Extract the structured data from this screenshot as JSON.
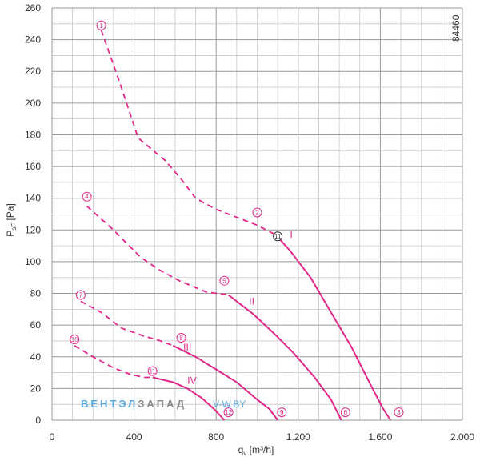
{
  "chart_data": {
    "type": "line",
    "id_number": "84460",
    "watermark": {
      "part1": "ВЕНТЭЛ",
      "part2": "ЗАПАД",
      "part3": "V-W.BY",
      "color1": "#5aa9dc",
      "color2": "#8a8a8a",
      "color3": "#5aa9dc"
    },
    "xlabel": {
      "main": "q",
      "sub": "v",
      "rest": " [m³/h]"
    },
    "ylabel": {
      "main": "P",
      "sub": "sF",
      "rest": " [Pa]"
    },
    "xlim": [
      0,
      2000
    ],
    "ylim": [
      0,
      260
    ],
    "grid": true,
    "x_ticks": [
      {
        "value": 0,
        "label": "0"
      },
      {
        "value": 400,
        "label": "400"
      },
      {
        "value": 800,
        "label": "800"
      },
      {
        "value": 1200,
        "label": "1.200"
      },
      {
        "value": 1600,
        "label": "1.600"
      },
      {
        "value": 2000,
        "label": "2.000"
      }
    ],
    "y_ticks": [
      {
        "value": 0,
        "label": "0"
      },
      {
        "value": 20,
        "label": "20"
      },
      {
        "value": 40,
        "label": "40"
      },
      {
        "value": 60,
        "label": "60"
      },
      {
        "value": 80,
        "label": "80"
      },
      {
        "value": 100,
        "label": "100"
      },
      {
        "value": 120,
        "label": "120"
      },
      {
        "value": 140,
        "label": "140"
      },
      {
        "value": 160,
        "label": "160"
      },
      {
        "value": 180,
        "label": "180"
      },
      {
        "value": 200,
        "label": "200"
      },
      {
        "value": 220,
        "label": "220"
      },
      {
        "value": 240,
        "label": "240"
      },
      {
        "value": 260,
        "label": "260"
      }
    ],
    "line_color": "#e0288a",
    "series": [
      {
        "name": "I",
        "label_at": [
          1160,
          115
        ],
        "dashed": [
          [
            240,
            246
          ],
          [
            330,
            213
          ],
          [
            420,
            178
          ],
          [
            550,
            164
          ],
          [
            630,
            152
          ],
          [
            700,
            140
          ],
          [
            800,
            133
          ],
          [
            1000,
            123
          ],
          [
            1090,
            117
          ]
        ],
        "solid": [
          [
            1090,
            117
          ],
          [
            1160,
            107
          ],
          [
            1260,
            90
          ],
          [
            1360,
            68
          ],
          [
            1460,
            46
          ],
          [
            1550,
            23
          ],
          [
            1610,
            8
          ],
          [
            1650,
            0
          ]
        ]
      },
      {
        "name": "II",
        "label_at": [
          960,
          73
        ],
        "dashed": [
          [
            170,
            135
          ],
          [
            300,
            120
          ],
          [
            430,
            103
          ],
          [
            520,
            95
          ],
          [
            620,
            88
          ],
          [
            750,
            81
          ],
          [
            860,
            79
          ]
        ],
        "solid": [
          [
            860,
            79
          ],
          [
            980,
            67
          ],
          [
            1080,
            55
          ],
          [
            1180,
            42
          ],
          [
            1280,
            27
          ],
          [
            1360,
            13
          ],
          [
            1410,
            0
          ]
        ]
      },
      {
        "name": "III",
        "label_at": [
          640,
          44
        ],
        "dashed": [
          [
            140,
            75
          ],
          [
            240,
            68
          ],
          [
            340,
            58
          ],
          [
            450,
            53
          ],
          [
            530,
            50
          ],
          [
            590,
            47
          ]
        ],
        "solid": [
          [
            590,
            47
          ],
          [
            700,
            40
          ],
          [
            800,
            32
          ],
          [
            900,
            24
          ],
          [
            1000,
            13
          ],
          [
            1060,
            7
          ],
          [
            1100,
            0
          ]
        ]
      },
      {
        "name": "IV",
        "label_at": [
          660,
          23
        ],
        "dashed": [
          [
            110,
            47
          ],
          [
            200,
            40
          ],
          [
            300,
            33
          ],
          [
            380,
            29
          ],
          [
            450,
            27
          ],
          [
            490,
            27
          ]
        ],
        "solid": [
          [
            490,
            27
          ],
          [
            590,
            24
          ],
          [
            660,
            20
          ],
          [
            730,
            14
          ],
          [
            790,
            7
          ],
          [
            840,
            0
          ]
        ]
      }
    ],
    "markers": [
      {
        "label": "1",
        "at": [
          240,
          249
        ],
        "style": "pink"
      },
      {
        "label": "2",
        "at": [
          1000,
          131
        ],
        "style": "pink"
      },
      {
        "label": "3",
        "at": [
          1690,
          5
        ],
        "style": "pink"
      },
      {
        "label": "4",
        "at": [
          170,
          141
        ],
        "style": "pink"
      },
      {
        "label": "5",
        "at": [
          840,
          88
        ],
        "style": "pink"
      },
      {
        "label": "6",
        "at": [
          1430,
          5
        ],
        "style": "pink"
      },
      {
        "label": "7",
        "at": [
          140,
          79
        ],
        "style": "pink"
      },
      {
        "label": "8",
        "at": [
          630,
          52
        ],
        "style": "pink"
      },
      {
        "label": "9",
        "at": [
          1120,
          5
        ],
        "style": "pink"
      },
      {
        "label": "10",
        "at": [
          110,
          51
        ],
        "style": "pink"
      },
      {
        "label": "11",
        "at": [
          490,
          31
        ],
        "style": "pink"
      },
      {
        "label": "12",
        "at": [
          860,
          5
        ],
        "style": "pink"
      },
      {
        "label": "11",
        "at": [
          1100,
          116
        ],
        "style": "dark"
      }
    ]
  }
}
